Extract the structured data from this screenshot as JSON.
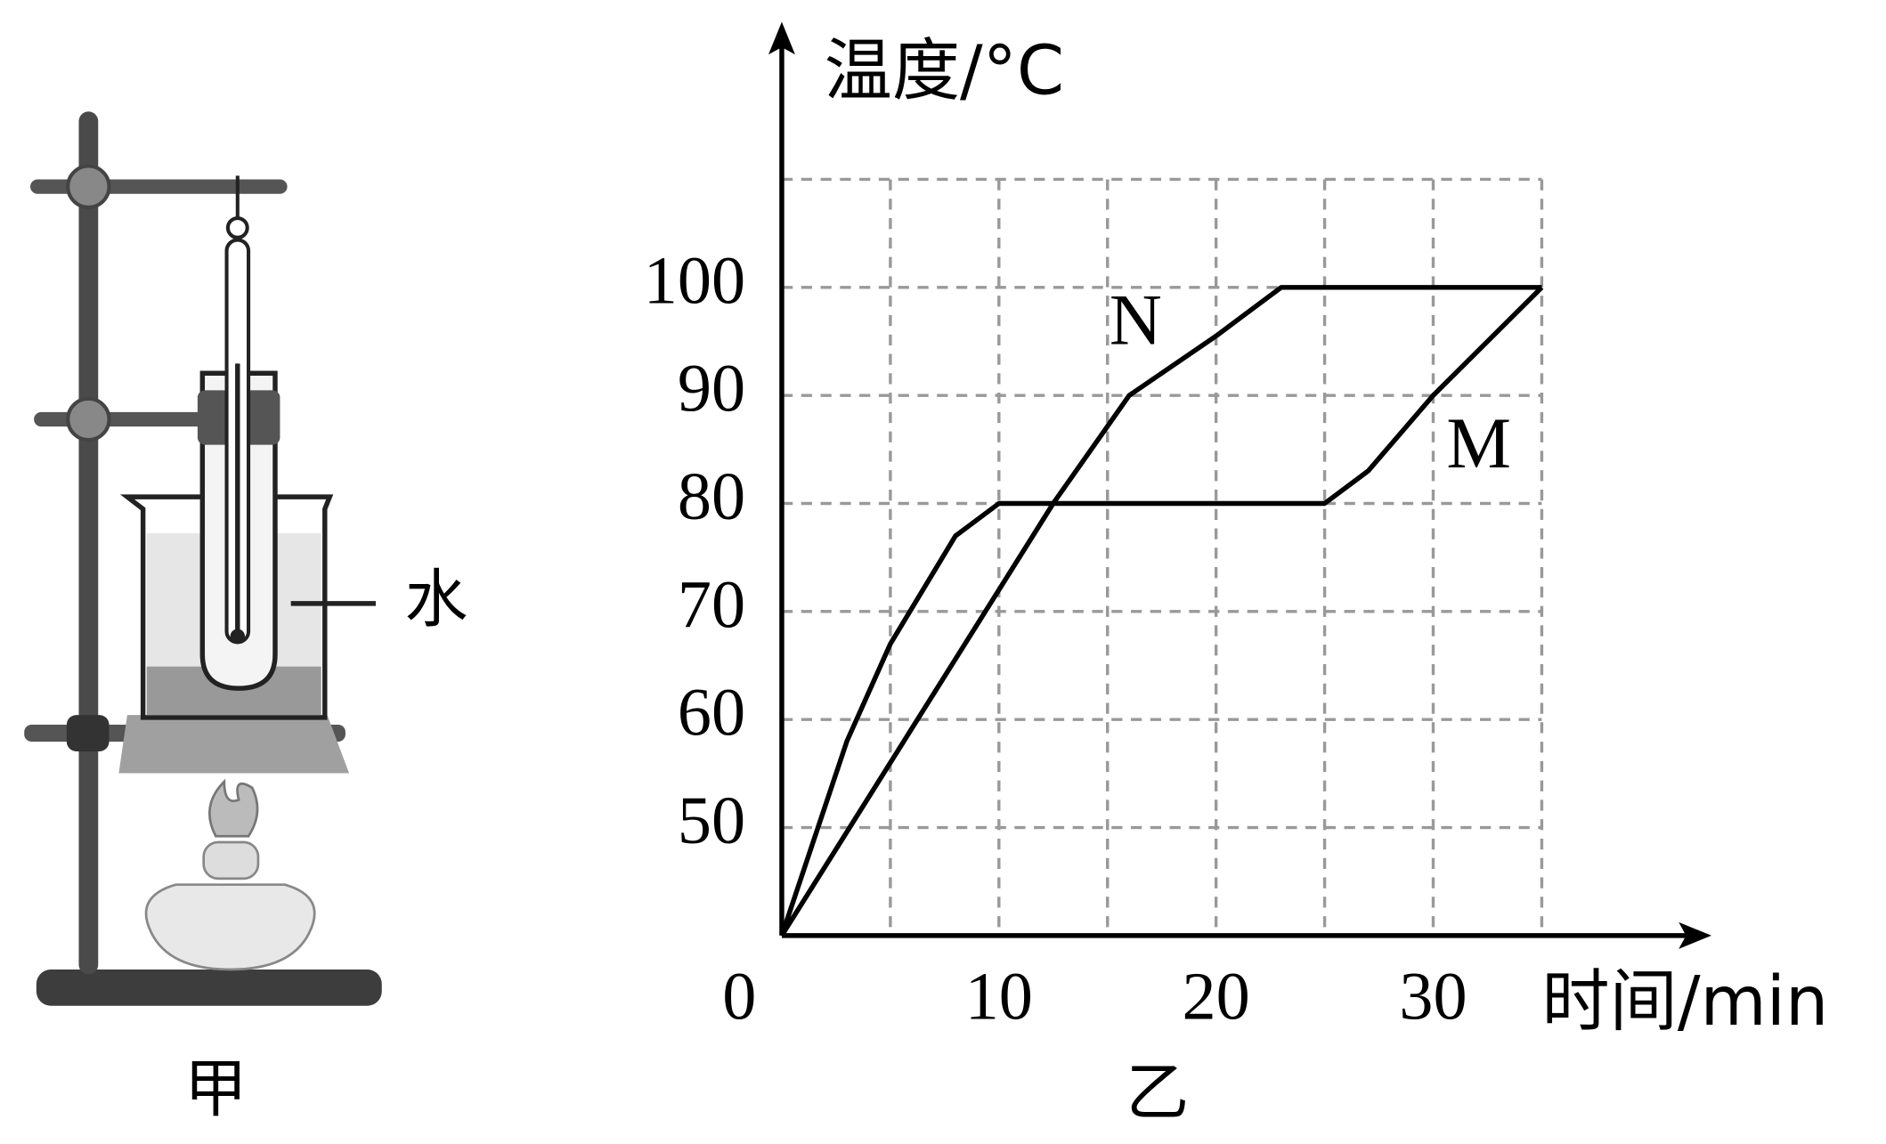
{
  "figure_labels": {
    "apparatus": "甲",
    "water": "水",
    "graph": "乙"
  },
  "chart_data": {
    "type": "line",
    "ylabel": "温度/°C",
    "xlabel": "时间/min",
    "xlim": [
      0,
      35
    ],
    "ylim": [
      40,
      110
    ],
    "xticks": [
      0,
      10,
      20,
      30
    ],
    "yticks": [
      50,
      60,
      70,
      80,
      90,
      100
    ],
    "xgrid": [
      5,
      10,
      15,
      20,
      25,
      30,
      35
    ],
    "ygrid": [
      50,
      60,
      70,
      80,
      90,
      100,
      110
    ],
    "grid": true,
    "series": [
      {
        "name": "N",
        "color": "#000000",
        "x": [
          0,
          5,
          10,
          12.5,
          16,
          20,
          23,
          35
        ],
        "values": [
          40,
          56,
          72,
          80,
          90,
          95.5,
          100,
          100
        ]
      },
      {
        "name": "M",
        "color": "#000000",
        "x": [
          0,
          3,
          5,
          8,
          10,
          25,
          27,
          30,
          35
        ],
        "values": [
          40,
          58,
          67,
          77,
          80,
          80,
          83,
          90,
          100
        ]
      }
    ]
  }
}
